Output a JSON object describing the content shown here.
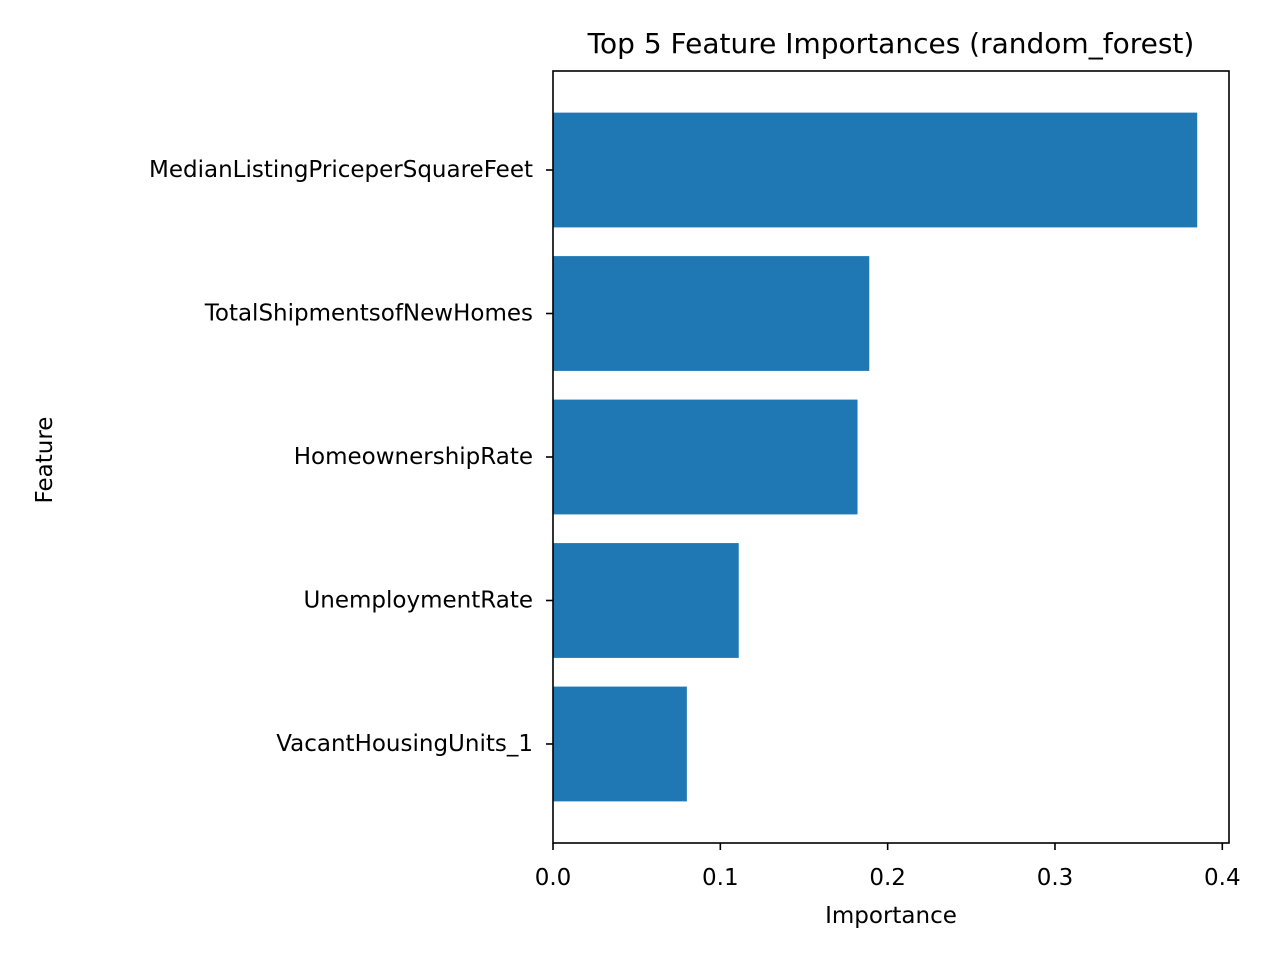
{
  "chart_data": {
    "type": "bar",
    "orientation": "horizontal",
    "title": "Top 5 Feature Importances (random_forest)",
    "xlabel": "Importance",
    "ylabel": "Feature",
    "categories": [
      "MedianListingPriceperSquareFeet",
      "TotalShipmentsofNewHomes",
      "HomeownershipRate",
      "UnemploymentRate",
      "VacantHousingUnits_1"
    ],
    "values": [
      0.385,
      0.189,
      0.182,
      0.111,
      0.08
    ],
    "xlim": [
      0,
      0.404
    ],
    "xticks": [
      {
        "value": 0.0,
        "label": "0.0"
      },
      {
        "value": 0.1,
        "label": "0.1"
      },
      {
        "value": 0.2,
        "label": "0.2"
      },
      {
        "value": 0.3,
        "label": "0.3"
      },
      {
        "value": 0.4,
        "label": "0.4"
      }
    ],
    "bar_color": "#1f77b4",
    "grid": false,
    "legend": false
  }
}
